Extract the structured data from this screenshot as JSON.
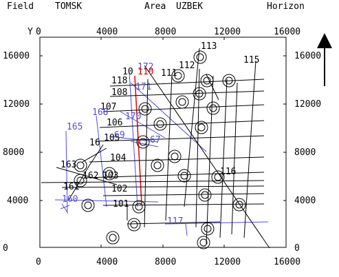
{
  "header": {
    "field_label": "Field",
    "field_value": "TOMSK",
    "area_label": "Area",
    "area_value": "UZBEK",
    "horizon_label": "Horizon"
  },
  "axes": {
    "y_letter": "Y",
    "top_ticks": [
      "0",
      "4000",
      "8000",
      "12000",
      "16000"
    ],
    "bottom_ticks": [
      "0",
      "4000",
      "8000",
      "12000",
      "16000"
    ],
    "left_ticks": [
      "16000",
      "12000",
      "8000",
      "4000",
      "0"
    ],
    "right_ticks": [
      "16000",
      "12000",
      "8000",
      "4000",
      "0"
    ]
  },
  "colors": {
    "black_lines": "#000000",
    "blue_lines": "#4a4ae6",
    "red_line": "#e00000",
    "blue_label": "#5050d0",
    "red_label": "#d00000"
  },
  "line_labels": {
    "black": [
      {
        "id": "l113",
        "text": "113"
      },
      {
        "id": "l115",
        "text": "115"
      },
      {
        "id": "l112",
        "text": "112"
      },
      {
        "id": "l111",
        "text": "111"
      },
      {
        "id": "l109",
        "text": "10"
      },
      {
        "id": "l118",
        "text": "118"
      },
      {
        "id": "l108",
        "text": "108"
      },
      {
        "id": "l107",
        "text": "107"
      },
      {
        "id": "l106",
        "text": "106"
      },
      {
        "id": "l105",
        "text": "105"
      },
      {
        "id": "l16",
        "text": "16"
      },
      {
        "id": "l104",
        "text": "104"
      },
      {
        "id": "l163",
        "text": "163"
      },
      {
        "id": "l162",
        "text": "162"
      },
      {
        "id": "l103",
        "text": "103"
      },
      {
        "id": "l161",
        "text": "161"
      },
      {
        "id": "l102",
        "text": "102"
      },
      {
        "id": "l101",
        "text": "101"
      },
      {
        "id": "l116",
        "text": "116"
      }
    ],
    "blue": [
      {
        "id": "l172",
        "text": "172"
      },
      {
        "id": "l171",
        "text": "171"
      },
      {
        "id": "l168",
        "text": "168"
      },
      {
        "id": "l165",
        "text": "165"
      },
      {
        "id": "l170",
        "text": "170"
      },
      {
        "id": "l169",
        "text": "69"
      },
      {
        "id": "l167",
        "text": "67"
      },
      {
        "id": "l160",
        "text": "160"
      },
      {
        "id": "l117",
        "text": "117"
      }
    ],
    "red": [
      {
        "id": "l110",
        "text": "110"
      }
    ]
  },
  "north_arrow": "north-arrow-icon"
}
